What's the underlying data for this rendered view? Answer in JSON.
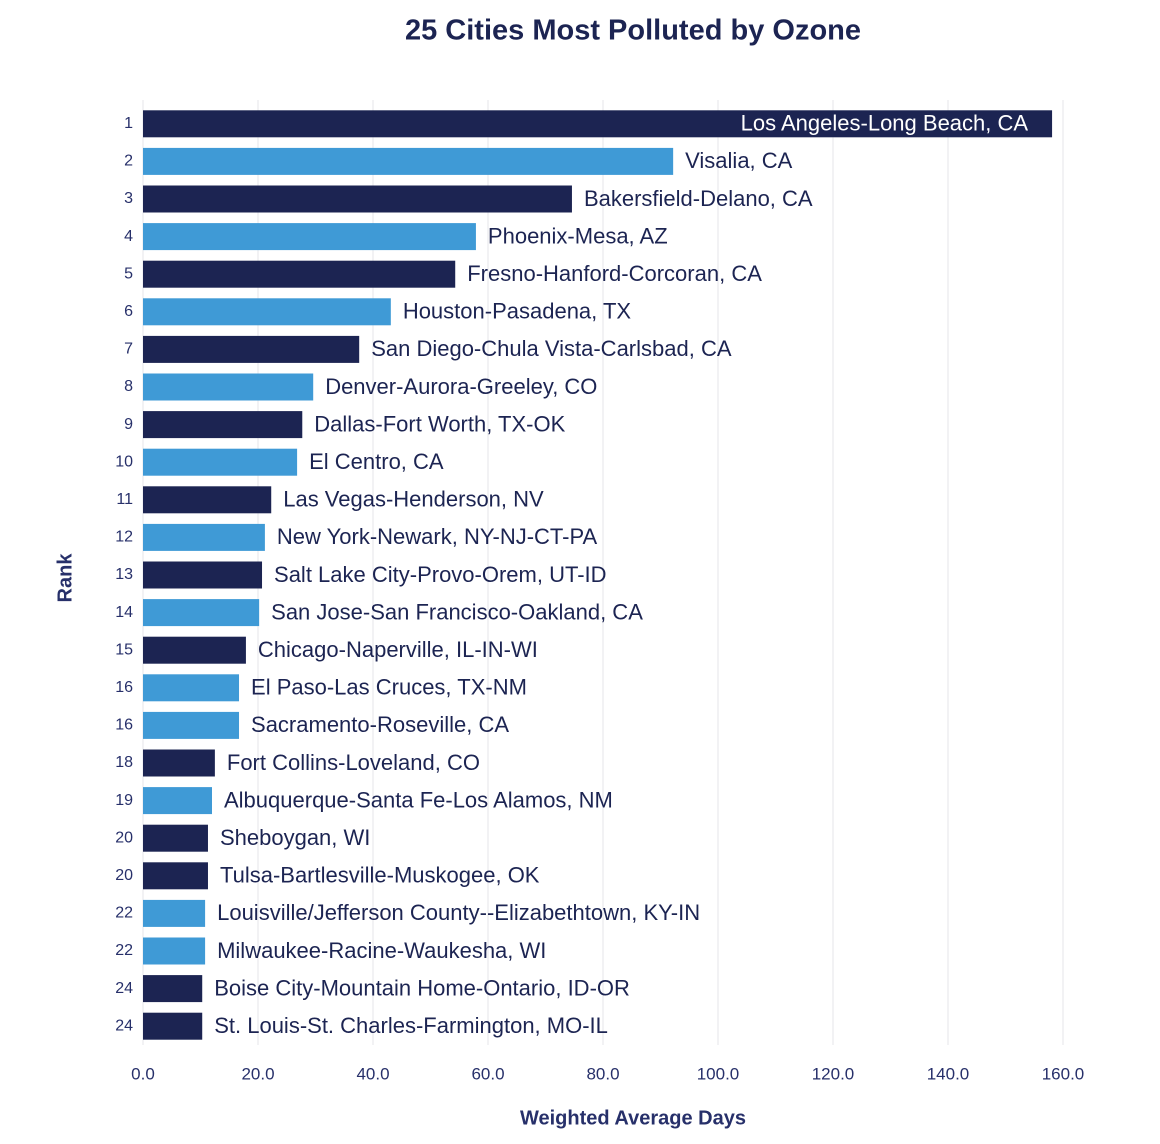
{
  "chart_data": {
    "type": "bar",
    "orientation": "horizontal",
    "title": "25 Cities Most Polluted by Ozone",
    "x_label": "Weighted Average Days",
    "y_label": "Rank",
    "categories": [
      "1",
      "2",
      "3",
      "4",
      "5",
      "6",
      "7",
      "8",
      "9",
      "10",
      "11",
      "12",
      "13",
      "14",
      "15",
      "16",
      "16",
      "18",
      "19",
      "20",
      "20",
      "22",
      "22",
      "24",
      "24"
    ],
    "labels": [
      "Los Angeles-Long Beach, CA",
      "Visalia, CA",
      "Bakersfield-Delano, CA",
      "Phoenix-Mesa, AZ",
      "Fresno-Hanford-Corcoran, CA",
      "Houston-Pasadena, TX",
      "San Diego-Chula Vista-Carlsbad, CA",
      "Denver-Aurora-Greeley, CO",
      "Dallas-Fort Worth, TX-OK",
      "El Centro, CA",
      "Las Vegas-Henderson, NV",
      "New York-Newark, NY-NJ-CT-PA",
      "Salt Lake City-Provo-Orem, UT-ID",
      "San Jose-San Francisco-Oakland, CA",
      "Chicago-Naperville, IL-IN-WI",
      "El Paso-Las Cruces, TX-NM",
      "Sacramento-Roseville, CA",
      "Fort Collins-Loveland, CO",
      "Albuquerque-Santa Fe-Los Alamos, NM",
      "Sheboygan, WI",
      "Tulsa-Bartlesville-Muskogee, OK",
      "Louisville/Jefferson County--Elizabethtown, KY-IN",
      "Milwaukee-Racine-Waukesha, WI",
      "Boise City-Mountain Home-Ontario, ID-OR",
      "St. Louis-St. Charles-Farmington, MO-IL"
    ],
    "values": [
      158.1,
      92.2,
      74.6,
      57.9,
      54.3,
      43.1,
      37.6,
      29.6,
      27.7,
      26.8,
      22.3,
      21.2,
      20.7,
      20.2,
      17.9,
      16.7,
      16.7,
      12.5,
      12.0,
      11.3,
      11.3,
      10.8,
      10.8,
      10.3,
      10.3
    ],
    "colors": [
      "#1c2452",
      "#3f9ad6",
      "#1c2452",
      "#3f9ad6",
      "#1c2452",
      "#3f9ad6",
      "#1c2452",
      "#3f9ad6",
      "#1c2452",
      "#3f9ad6",
      "#1c2452",
      "#3f9ad6",
      "#1c2452",
      "#3f9ad6",
      "#1c2452",
      "#3f9ad6",
      "#3f9ad6",
      "#1c2452",
      "#3f9ad6",
      "#1c2452",
      "#1c2452",
      "#3f9ad6",
      "#3f9ad6",
      "#1c2452",
      "#1c2452"
    ],
    "xlim": [
      0,
      160
    ],
    "xticks": [
      {
        "value": 0,
        "label": "0.0"
      },
      {
        "value": 20,
        "label": "20.0"
      },
      {
        "value": 40,
        "label": "40.0"
      },
      {
        "value": 60,
        "label": "60.0"
      },
      {
        "value": 80,
        "label": "80.0"
      },
      {
        "value": 100,
        "label": "100.0"
      },
      {
        "value": 120,
        "label": "120.0"
      },
      {
        "value": 140,
        "label": "140.0"
      },
      {
        "value": 160,
        "label": "160.0"
      }
    ],
    "grid": true
  }
}
